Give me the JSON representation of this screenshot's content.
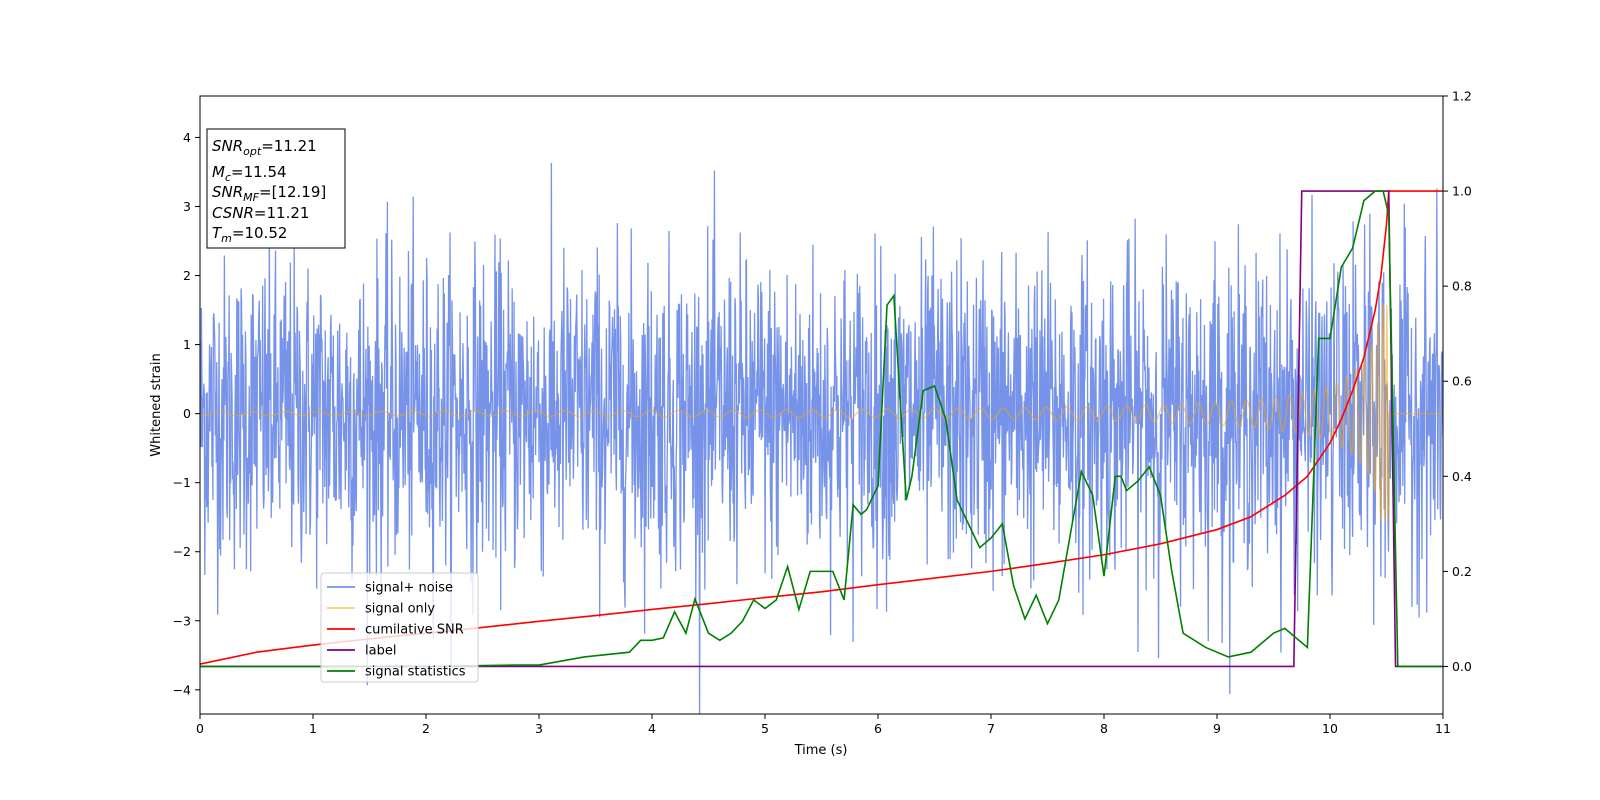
{
  "chart_data": {
    "type": "line",
    "xlabel": "Time (s)",
    "ylabel": "Whitened strain",
    "xlim": [
      0,
      11
    ],
    "ylim": [
      -4.35,
      4.6
    ],
    "y2lim": [
      -0.1,
      1.2
    ],
    "xticks": [
      0,
      1,
      2,
      3,
      4,
      5,
      6,
      7,
      8,
      9,
      10,
      11
    ],
    "yticks": [
      -4,
      -3,
      -2,
      -1,
      0,
      1,
      2,
      3,
      4
    ],
    "y2ticks": [
      0.0,
      0.2,
      0.4,
      0.6,
      0.8,
      1.0,
      1.2
    ],
    "grid": false,
    "legend_position": "lower-left",
    "annotation": {
      "snr_opt": "=11.21",
      "mc": "=11.54",
      "snr_mf": "=[12.19]",
      "csnr": "=11.21",
      "tm": "=10.52"
    },
    "series": [
      {
        "name": "signal+ noise",
        "axis": "left",
        "color": "#4169e1",
        "opacity": 0.72,
        "description": "whitened noisy strain, approx uniform amplitude ~±2.5 with spikes to ~±4"
      },
      {
        "name": "signal only",
        "axis": "left",
        "color": "#ffa500",
        "opacity": 0.55,
        "description": "chirp waveform, amplitude growing from ~0.03 at t=0 to ~1.6 at t=10.52, zero afterwards"
      },
      {
        "name": "cumilative SNR",
        "axis": "right",
        "color": "#ff0000",
        "x": [
          0,
          0.5,
          1,
          1.5,
          2,
          2.5,
          3,
          3.5,
          4,
          4.5,
          5,
          5.5,
          6,
          6.5,
          7,
          7.5,
          8,
          8.5,
          9,
          9.3,
          9.6,
          9.8,
          10,
          10.1,
          10.2,
          10.3,
          10.4,
          10.45,
          10.5,
          10.52,
          10.6,
          11
        ],
        "y": [
          0.005,
          0.03,
          0.045,
          0.058,
          0.07,
          0.082,
          0.095,
          0.107,
          0.12,
          0.132,
          0.145,
          0.157,
          0.172,
          0.186,
          0.2,
          0.217,
          0.235,
          0.258,
          0.288,
          0.315,
          0.36,
          0.4,
          0.47,
          0.52,
          0.58,
          0.65,
          0.75,
          0.82,
          0.93,
          1.0,
          1.0,
          1.0
        ]
      },
      {
        "name": "label",
        "axis": "right",
        "color": "#800080",
        "x": [
          0,
          9.68,
          9.75,
          10.52,
          10.58,
          11
        ],
        "y": [
          0,
          0,
          1,
          1,
          0,
          0
        ]
      },
      {
        "name": "signal statistics",
        "axis": "right",
        "color": "#008000",
        "x": [
          0,
          1,
          2,
          2.8,
          3,
          3.4,
          3.6,
          3.8,
          3.9,
          4.0,
          4.1,
          4.2,
          4.3,
          4.38,
          4.5,
          4.6,
          4.7,
          4.8,
          4.9,
          5.0,
          5.1,
          5.2,
          5.3,
          5.4,
          5.5,
          5.6,
          5.7,
          5.78,
          5.85,
          5.9,
          6.0,
          6.08,
          6.14,
          6.25,
          6.3,
          6.4,
          6.5,
          6.6,
          6.7,
          6.8,
          6.9,
          7.0,
          7.1,
          7.2,
          7.3,
          7.4,
          7.5,
          7.6,
          7.8,
          7.9,
          8.0,
          8.1,
          8.15,
          8.2,
          8.3,
          8.4,
          8.5,
          8.6,
          8.7,
          8.9,
          9.1,
          9.3,
          9.5,
          9.6,
          9.8,
          9.9,
          10.0,
          10.1,
          10.2,
          10.3,
          10.4,
          10.47,
          10.52,
          10.6,
          10.7,
          11
        ],
        "y": [
          0,
          0,
          0,
          0.003,
          0.003,
          0.02,
          0.025,
          0.03,
          0.055,
          0.055,
          0.06,
          0.115,
          0.07,
          0.142,
          0.07,
          0.055,
          0.07,
          0.095,
          0.14,
          0.122,
          0.14,
          0.21,
          0.12,
          0.2,
          0.2,
          0.2,
          0.14,
          0.34,
          0.32,
          0.33,
          0.38,
          0.76,
          0.78,
          0.35,
          0.4,
          0.58,
          0.59,
          0.52,
          0.35,
          0.3,
          0.25,
          0.27,
          0.3,
          0.17,
          0.1,
          0.15,
          0.09,
          0.14,
          0.41,
          0.36,
          0.19,
          0.4,
          0.4,
          0.37,
          0.39,
          0.42,
          0.36,
          0.2,
          0.07,
          0.04,
          0.02,
          0.03,
          0.07,
          0.08,
          0.04,
          0.69,
          0.69,
          0.84,
          0.88,
          0.98,
          1.0,
          1.0,
          0.95,
          0.0,
          0.0,
          0.0
        ]
      }
    ]
  }
}
